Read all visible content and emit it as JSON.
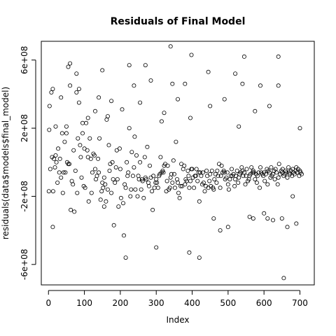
{
  "chart_data": {
    "type": "scatter",
    "title": "Residuals of Final Model",
    "xlabel": "Index",
    "ylabel": "residuals(data$models$final_model)",
    "xlim": [
      -20,
      740
    ],
    "ylim": [
      -720000000,
      710000000
    ],
    "xticks": [
      0,
      100,
      200,
      300,
      400,
      500,
      600,
      700
    ],
    "xtick_labels": [
      "0",
      "100",
      "200",
      "300",
      "400",
      "500",
      "600",
      "700"
    ],
    "yticks": [
      -600000000,
      -200000000,
      200000000,
      600000000
    ],
    "ytick_labels": [
      "-6e+08",
      "-2e+08",
      "2e+08",
      "6e+08"
    ],
    "grid": false,
    "legend": "none",
    "point_marker": "open-circle",
    "points": {
      "x": [
        1,
        2,
        5,
        8,
        10,
        12,
        13,
        15,
        18,
        20,
        22,
        25,
        27,
        30,
        32,
        35,
        38,
        40,
        42,
        45,
        47,
        50,
        52,
        55,
        58,
        60,
        62,
        65,
        68,
        70,
        72,
        75,
        78,
        80,
        82,
        85,
        88,
        90,
        92,
        95,
        98,
        100,
        102,
        105,
        108,
        110,
        112,
        115,
        118,
        120,
        122,
        125,
        128,
        130,
        132,
        135,
        138,
        140,
        142,
        145,
        148,
        150,
        152,
        155,
        158,
        160,
        162,
        165,
        168,
        170,
        172,
        175,
        178,
        180,
        182,
        185,
        188,
        190,
        192,
        195,
        198,
        200,
        202,
        205,
        208,
        210,
        212,
        215,
        218,
        220,
        222,
        225,
        228,
        230,
        232,
        235,
        238,
        240,
        242,
        245,
        248,
        250,
        252,
        255,
        258,
        260,
        262,
        265,
        268,
        270,
        272,
        275,
        278,
        280,
        282,
        285,
        288,
        290,
        292,
        295,
        298,
        300,
        302,
        305,
        308,
        310,
        312,
        315,
        318,
        320,
        322,
        325,
        328,
        330,
        332,
        335,
        338,
        340,
        342,
        345,
        348,
        350,
        352,
        355,
        358,
        360,
        362,
        365,
        368,
        370,
        372,
        375,
        378,
        380,
        382,
        385,
        388,
        390,
        392,
        395,
        398,
        400,
        402,
        405,
        408,
        410,
        412,
        415,
        418,
        420,
        422,
        425,
        428,
        430,
        432,
        435,
        438,
        440,
        442,
        445,
        448,
        450,
        452,
        455,
        458,
        460,
        462,
        465,
        468,
        470,
        472,
        475,
        478,
        480,
        482,
        485,
        488,
        490,
        492,
        495,
        498,
        500,
        502,
        505,
        508,
        510,
        512,
        515,
        518,
        520,
        522,
        525,
        528,
        530,
        532,
        535,
        538,
        540,
        542,
        545,
        548,
        550,
        552,
        555,
        558,
        560,
        562,
        565,
        568,
        570,
        572,
        575,
        578,
        580,
        582,
        585,
        588,
        590,
        592,
        595,
        598,
        600,
        602,
        605,
        608,
        610,
        612,
        615,
        618,
        620,
        622,
        625,
        628,
        630,
        632,
        635,
        638,
        640,
        642,
        645,
        648,
        650,
        652,
        655,
        658,
        660,
        662,
        665,
        668,
        670,
        672,
        675,
        678,
        680,
        682,
        685,
        688,
        690,
        692,
        695,
        698,
        700,
        702,
        705,
        3,
        12,
        35,
        55,
        60,
        78,
        85,
        110,
        140,
        150,
        155,
        165,
        215,
        225,
        238,
        270,
        285,
        300,
        322,
        340,
        360,
        380,
        392,
        398,
        420,
        445,
        478,
        500,
        520,
        545,
        560,
        570,
        590,
        610,
        625,
        640,
        655,
        665,
        680,
        640,
        20,
        50,
        95,
        130,
        175,
        255,
        315,
        345,
        395,
        450,
        490,
        530,
        575,
        615,
        650,
        700,
        690,
        600,
        540,
        460
      ],
      "y": [
        -170000000,
        190000000,
        -40000000,
        410000000,
        30000000,
        -380000000,
        -170000000,
        20000000,
        -30000000,
        40000000,
        0,
        -120000000,
        80000000,
        -60000000,
        20000000,
        -90000000,
        170000000,
        -180000000,
        -60000000,
        120000000,
        -60000000,
        210000000,
        0,
        -10000000,
        -10000000,
        580000000,
        -280000000,
        -110000000,
        -130000000,
        70000000,
        -290000000,
        -50000000,
        520000000,
        -180000000,
        140000000,
        350000000,
        100000000,
        30000000,
        -90000000,
        170000000,
        -140000000,
        80000000,
        -150000000,
        230000000,
        70000000,
        30000000,
        -230000000,
        140000000,
        20000000,
        -180000000,
        -60000000,
        50000000,
        40000000,
        -40000000,
        -100000000,
        -80000000,
        20000000,
        -60000000,
        140000000,
        -220000000,
        -170000000,
        -120000000,
        -150000000,
        -90000000,
        -130000000,
        -230000000,
        250000000,
        -160000000,
        100000000,
        -50000000,
        -10000000,
        -180000000,
        0,
        -100000000,
        -370000000,
        -120000000,
        -30000000,
        70000000,
        -100000000,
        -260000000,
        80000000,
        -40000000,
        -210000000,
        310000000,
        -240000000,
        -430000000,
        -130000000,
        -150000000,
        0,
        -80000000,
        -60000000,
        200000000,
        -200000000,
        -160000000,
        60000000,
        -80000000,
        -30000000,
        150000000,
        -160000000,
        40000000,
        -200000000,
        -80000000,
        -100000000,
        0,
        -160000000,
        -100000000,
        -110000000,
        -210000000,
        30000000,
        -90000000,
        -100000000,
        90000000,
        -120000000,
        -140000000,
        -20000000,
        -90000000,
        -170000000,
        -280000000,
        -80000000,
        -150000000,
        -120000000,
        -100000000,
        -120000000,
        -150000000,
        -80000000,
        -70000000,
        30000000,
        -60000000,
        -50000000,
        -60000000,
        -20000000,
        -10000000,
        -170000000,
        -110000000,
        -20000000,
        -160000000,
        -150000000,
        -90000000,
        -70000000,
        -120000000,
        10000000,
        -70000000,
        -150000000,
        120000000,
        -100000000,
        -120000000,
        -180000000,
        -210000000,
        -140000000,
        -10000000,
        -140000000,
        -40000000,
        -20000000,
        -130000000,
        -100000000,
        -110000000,
        -50000000,
        -80000000,
        -150000000,
        -110000000,
        -40000000,
        -40000000,
        -90000000,
        -150000000,
        -80000000,
        -80000000,
        -40000000,
        -110000000,
        -60000000,
        -230000000,
        -60000000,
        -80000000,
        -130000000,
        -60000000,
        -120000000,
        -170000000,
        -140000000,
        -50000000,
        -80000000,
        -150000000,
        -110000000,
        -70000000,
        -140000000,
        -50000000,
        -150000000,
        -160000000,
        -100000000,
        -70000000,
        -120000000,
        -50000000,
        -80000000,
        -10000000,
        -150000000,
        -80000000,
        -20000000,
        -60000000,
        -50000000,
        -60000000,
        -100000000,
        -90000000,
        -60000000,
        -130000000,
        -160000000,
        -100000000,
        -80000000,
        -40000000,
        -80000000,
        -70000000,
        -140000000,
        -100000000,
        -80000000,
        -50000000,
        -120000000,
        -90000000,
        -70000000,
        -60000000,
        -30000000,
        -50000000,
        -80000000,
        -60000000,
        -130000000,
        -80000000,
        -40000000,
        -110000000,
        -100000000,
        -80000000,
        -70000000,
        -30000000,
        -60000000,
        -50000000,
        -60000000,
        -100000000,
        -70000000,
        -120000000,
        -80000000,
        -60000000,
        -150000000,
        -30000000,
        -60000000,
        -70000000,
        -80000000,
        -60000000,
        -110000000,
        -70000000,
        -40000000,
        -130000000,
        -50000000,
        -60000000,
        -90000000,
        -30000000,
        -80000000,
        -70000000,
        -50000000,
        -100000000,
        -40000000,
        -60000000,
        -130000000,
        -90000000,
        -10000000,
        -70000000,
        -50000000,
        -60000000,
        -40000000,
        -80000000,
        -70000000,
        -50000000,
        -60000000,
        -90000000,
        -30000000,
        -60000000,
        -70000000,
        -50000000,
        -80000000,
        -40000000,
        -60000000,
        -70000000,
        -50000000,
        -30000000,
        -60000000,
        -40000000,
        -80000000,
        -50000000,
        -60000000,
        -70000000,
        330000000,
        430000000,
        380000000,
        560000000,
        450000000,
        410000000,
        430000000,
        260000000,
        380000000,
        540000000,
        -260000000,
        270000000,
        -560000000,
        570000000,
        450000000,
        570000000,
        480000000,
        -500000000,
        290000000,
        680000000,
        370000000,
        460000000,
        -530000000,
        630000000,
        -560000000,
        530000000,
        -400000000,
        -380000000,
        520000000,
        620000000,
        -320000000,
        -330000000,
        450000000,
        -330000000,
        -340000000,
        620000000,
        -680000000,
        -380000000,
        -200000000,
        450000000,
        210000000,
        170000000,
        230000000,
        300000000,
        360000000,
        350000000,
        240000000,
        460000000,
        260000000,
        330000000,
        370000000,
        210000000,
        300000000,
        330000000,
        -330000000,
        200000000,
        -360000000,
        -300000000,
        460000000,
        -330000000
      ]
    }
  }
}
